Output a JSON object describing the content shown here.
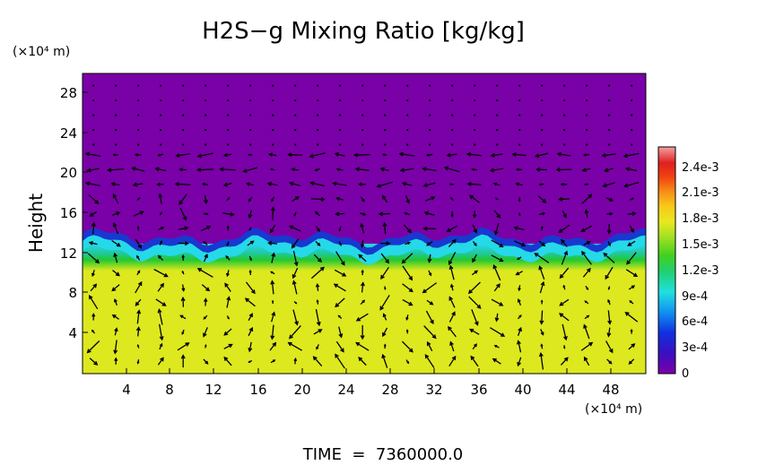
{
  "chart_data": {
    "type": "heatmap",
    "title": "H2S−g Mixing Ratio [kg/kg]",
    "ylabel": "Height",
    "y_unit": "(×10⁴ m)",
    "x_unit": "(×10⁴ m)",
    "xlim": [
      0,
      51.5
    ],
    "ylim": [
      0,
      29.5
    ],
    "x_ticks": [
      "4",
      "8",
      "12",
      "16",
      "20",
      "24",
      "28",
      "32",
      "36",
      "40",
      "44",
      "48"
    ],
    "y_ticks": [
      "4",
      "8",
      "12",
      "16",
      "20",
      "24",
      "28"
    ],
    "colorbar": {
      "labels": [
        "0",
        "3e-4",
        "6e-4",
        "9e-4",
        "1.2e-3",
        "1.5e-3",
        "1.8e-3",
        "2.1e-3",
        "2.4e-3"
      ],
      "min": 0,
      "max": 0.0026
    },
    "field_levels": {
      "upper_layer_value": 0,
      "interface_height_approx": 12.8,
      "lower_layer_value": 0.00165
    },
    "overlay": "velocity vectors",
    "footer": "TIME  =  7360000.0"
  },
  "colors": {
    "upper_layer": "#7a00a8",
    "lower_layer": "#dde81e",
    "transition_green": "#22c830",
    "interface_cyan": "#25d9e8",
    "interface_blue": "#1838d0",
    "arrow": "#000000"
  }
}
